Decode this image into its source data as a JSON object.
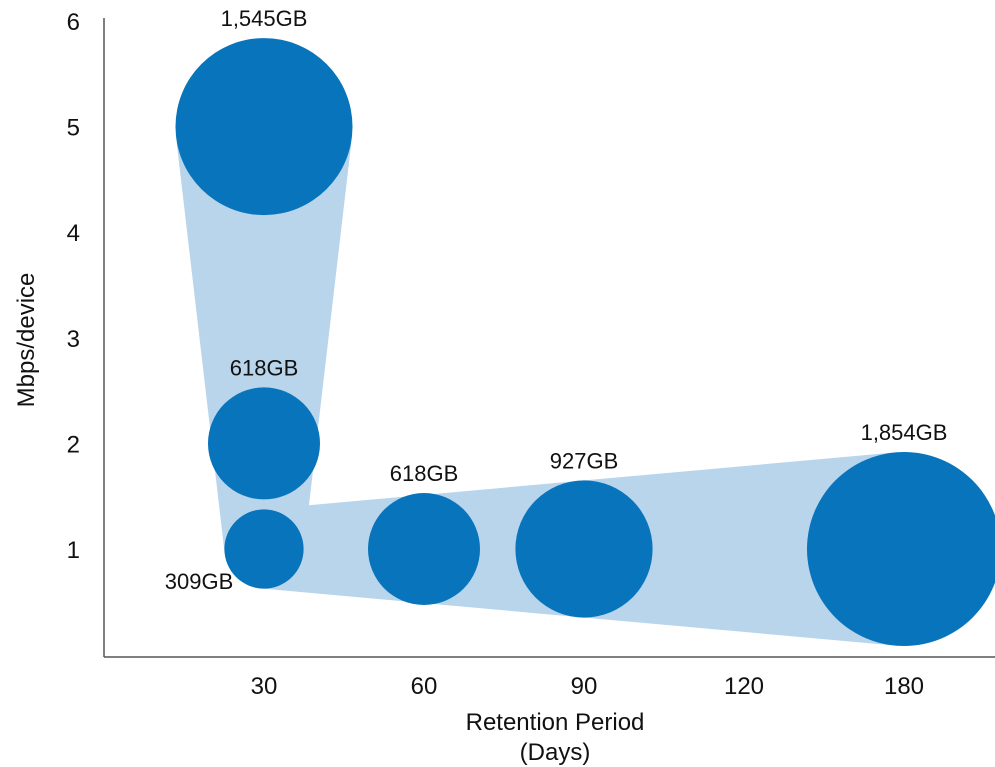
{
  "chart_data": {
    "type": "scatter",
    "title": "",
    "xlabel": "Retention Period",
    "xlabel_line2": "(Days)",
    "ylabel": "Mbps/device",
    "xlim": [
      0,
      180
    ],
    "ylim": [
      0,
      6
    ],
    "xticks": [
      "30",
      "60",
      "90",
      "120",
      "180"
    ],
    "yticks": [
      "1",
      "2",
      "3",
      "4",
      "5",
      "6"
    ],
    "grid": false,
    "legend": "none",
    "colors": {
      "bubble": "#0874bb",
      "band": "#b8d5ec"
    },
    "points": [
      {
        "x": 30,
        "y": 5,
        "storage_gb": 1545,
        "label": "1,545GB"
      },
      {
        "x": 30,
        "y": 2,
        "storage_gb": 618,
        "label": "618GB"
      },
      {
        "x": 30,
        "y": 1,
        "storage_gb": 309,
        "label": "309GB"
      },
      {
        "x": 60,
        "y": 1,
        "storage_gb": 618,
        "label": "618GB"
      },
      {
        "x": 90,
        "y": 1,
        "storage_gb": 927,
        "label": "927GB"
      },
      {
        "x": 180,
        "y": 1,
        "storage_gb": 1854,
        "label": "1,854GB"
      }
    ]
  }
}
